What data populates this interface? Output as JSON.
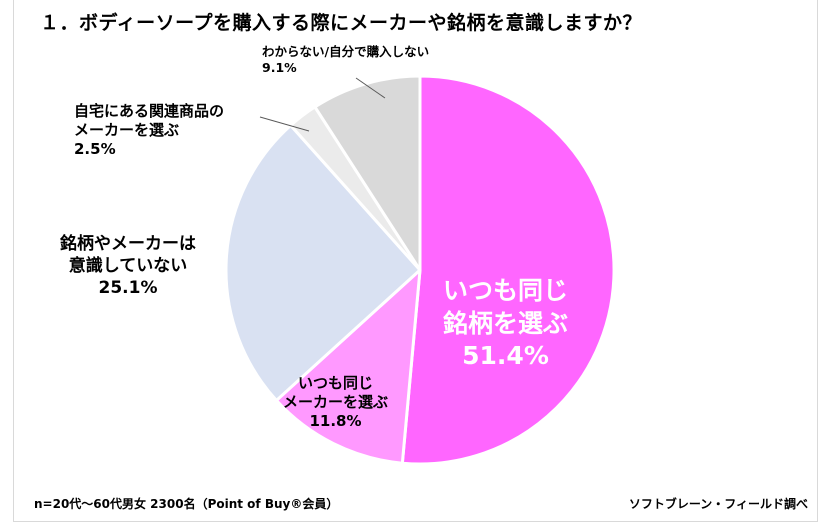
{
  "header": {
    "title": "１．ボディーソープを購入する際にメーカーや銘柄を意識しますか？"
  },
  "footer": {
    "sample_note": "n=20代～60代男女 2300名（Point of Buy®会員）",
    "source": "ソフトブレーン・フィールド調べ"
  },
  "labels": {
    "same_brand": {
      "line1": "いつも同じ",
      "line2": "銘柄を選ぶ",
      "pct": "51.4%"
    },
    "same_maker": {
      "line1": "いつも同じ",
      "line2": "メーカーを選ぶ",
      "pct": "11.8%"
    },
    "not_aware": {
      "line1": "銘柄やメーカーは",
      "line2": "意識していない",
      "pct": "25.1%"
    },
    "home_related": {
      "line1": "自宅にある関連商品の",
      "line2": "メーカーを選ぶ",
      "pct": "2.5%"
    },
    "dont_know": {
      "line1": "わからない/自分で購入しない",
      "pct": "9.1%"
    }
  },
  "colors": {
    "same_brand": "#ff66ff",
    "same_maker": "#ff99ff",
    "not_aware": "#d9e1f2",
    "home_related": "#ebebeb",
    "dont_know": "#d9d9d9",
    "separator": "#ffffff",
    "leader_line": "#595959"
  },
  "chart_data": {
    "type": "pie",
    "title": "１．ボディーソープを購入する際にメーカーや銘柄を意識しますか？",
    "start_angle": "12 o'clock",
    "direction": "clockwise",
    "categories": [
      "いつも同じ銘柄を選ぶ",
      "いつも同じメーカーを選ぶ",
      "銘柄やメーカーは意識していない",
      "自宅にある関連商品のメーカーを選ぶ",
      "わからない/自分で購入しない"
    ],
    "values": [
      51.4,
      11.8,
      25.1,
      2.5,
      9.1
    ],
    "unit": "%",
    "legend": "none (data labels on/near slices)",
    "annotations": [
      "n=20代～60代男女 2300名（Point of Buy®会員）",
      "ソフトブレーン・フィールド調べ"
    ]
  }
}
